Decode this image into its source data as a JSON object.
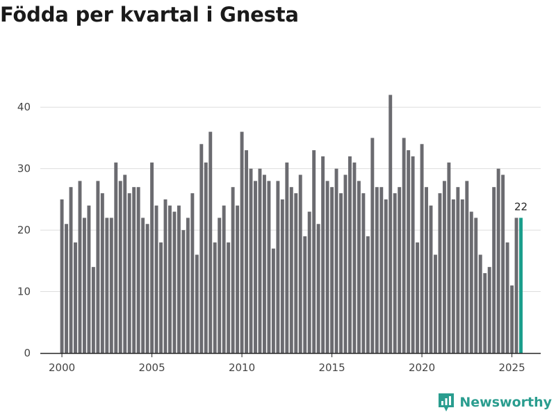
{
  "title": "Födda per kvartal i Gnesta",
  "brand": {
    "name": "Newsworthy"
  },
  "colors": {
    "bar": "#6b6b70",
    "highlight": "#1a9e8c",
    "grid": "#dddddd",
    "axis": "#222222",
    "brand": "#2a9d8f"
  },
  "chart_data": {
    "type": "bar",
    "title": "Födda per kvartal i Gnesta",
    "xlabel": "",
    "ylabel": "",
    "x_start": 2000,
    "periods_per_year": 4,
    "xlim": [
      1998.8,
      2026.6
    ],
    "ylim": [
      0,
      45
    ],
    "yticks": [
      0,
      10,
      20,
      30,
      40
    ],
    "xticks": [
      2000,
      2005,
      2010,
      2015,
      2020,
      2025
    ],
    "grid": true,
    "values": [
      25,
      21,
      27,
      18,
      28,
      22,
      24,
      14,
      28,
      26,
      22,
      22,
      31,
      28,
      29,
      26,
      27,
      27,
      22,
      21,
      31,
      24,
      18,
      25,
      24,
      23,
      24,
      20,
      22,
      26,
      16,
      34,
      31,
      36,
      18,
      22,
      24,
      18,
      27,
      24,
      36,
      33,
      30,
      28,
      30,
      29,
      28,
      17,
      28,
      25,
      31,
      27,
      26,
      29,
      19,
      23,
      33,
      21,
      32,
      28,
      27,
      30,
      26,
      29,
      32,
      31,
      28,
      26,
      19,
      35,
      27,
      27,
      25,
      42,
      26,
      27,
      35,
      33,
      32,
      18,
      34,
      27,
      24,
      16,
      26,
      28,
      31,
      25,
      27,
      25,
      28,
      23,
      22,
      16,
      13,
      14,
      27,
      30,
      29,
      18,
      11,
      22,
      22
    ],
    "highlight_index": 102,
    "highlight_label": "22"
  }
}
